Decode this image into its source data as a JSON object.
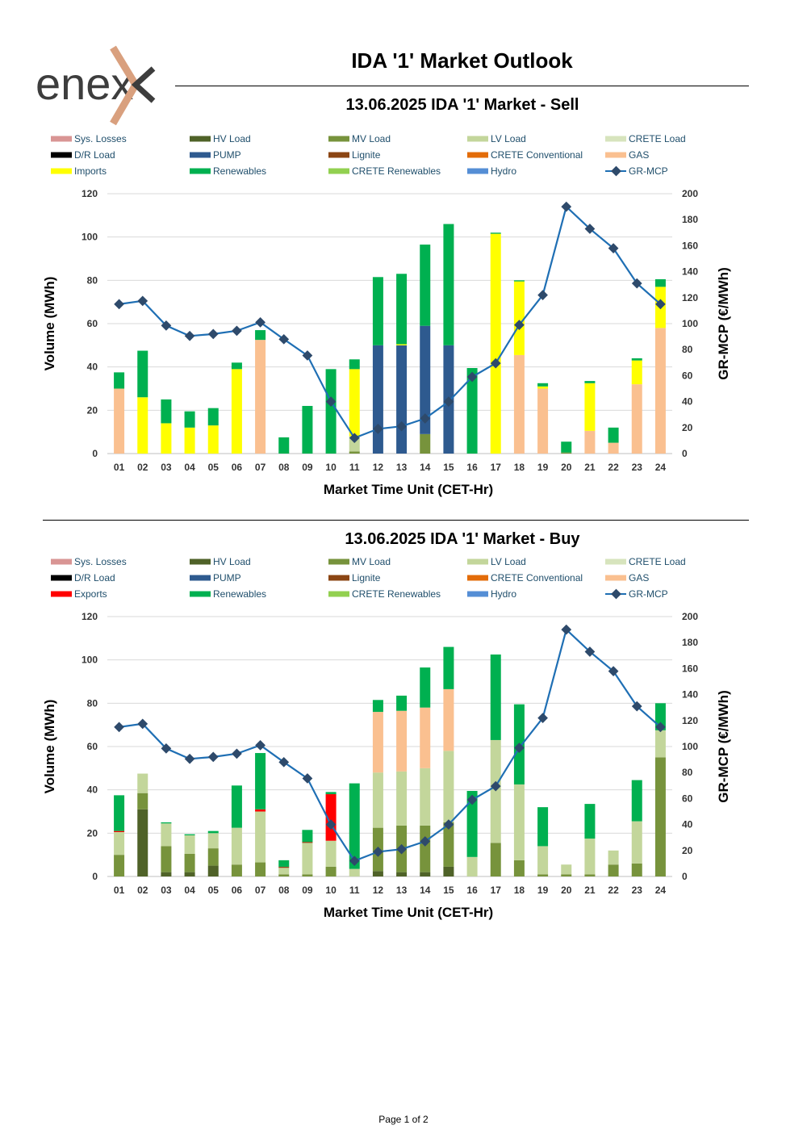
{
  "header": {
    "logo_text": "enex",
    "title": "IDA '1' Market Outlook"
  },
  "footer": {
    "page_label": "Page 1 of 2"
  },
  "colors": {
    "sys_losses": "#d99594",
    "hv_load": "#4f6228",
    "mv_load": "#77933c",
    "lv_load": "#c3d69b",
    "crete_load": "#d7e4bd",
    "dr_load": "#000000",
    "pump": "#2e5a8f",
    "lignite": "#8b4513",
    "crete_conventional": "#e36c09",
    "gas": "#fac090",
    "imports": "#ffff00",
    "exports": "#ff0000",
    "renewables": "#00b050",
    "crete_renewables": "#92d050",
    "hydro": "#558ed5",
    "mcp": "#1f6fb4",
    "mcp_marker": "#2e4a6b"
  },
  "chart_data": [
    {
      "id": "sell",
      "type": "bar",
      "title": "13.06.2025  IDA '1' Market - Sell",
      "xlabel": "Market Time Unit (CET-Hr)",
      "ylabel": "Volume (MWh)",
      "y2label": "GR-MCP (€/MWh)",
      "ylim": [
        0,
        120
      ],
      "yticks": [
        0,
        20,
        40,
        60,
        80,
        100,
        120
      ],
      "y2lim": [
        0,
        200
      ],
      "y2ticks": [
        0,
        20,
        40,
        60,
        80,
        100,
        120,
        140,
        160,
        180,
        200
      ],
      "legend": [
        {
          "label": "Sys. Losses",
          "key": "sys_losses"
        },
        {
          "label": "HV Load",
          "key": "hv_load"
        },
        {
          "label": "MV Load",
          "key": "mv_load"
        },
        {
          "label": "LV Load",
          "key": "lv_load"
        },
        {
          "label": "CRETE Load",
          "key": "crete_load"
        },
        {
          "label": "D/R Load",
          "key": "dr_load"
        },
        {
          "label": "PUMP",
          "key": "pump"
        },
        {
          "label": "Lignite",
          "key": "lignite"
        },
        {
          "label": "CRETE Conventional",
          "key": "crete_conventional"
        },
        {
          "label": "GAS",
          "key": "gas"
        },
        {
          "label": "Imports",
          "key": "imports"
        },
        {
          "label": "Renewables",
          "key": "renewables"
        },
        {
          "label": "CRETE Renewables",
          "key": "crete_renewables"
        },
        {
          "label": "Hydro",
          "key": "hydro"
        },
        {
          "label": "GR-MCP",
          "key": "mcp",
          "line": true
        }
      ],
      "categories": [
        "01",
        "02",
        "03",
        "04",
        "05",
        "06",
        "07",
        "08",
        "09",
        "10",
        "11",
        "12",
        "13",
        "14",
        "15",
        "16",
        "17",
        "18",
        "19",
        "20",
        "21",
        "22",
        "23",
        "24"
      ],
      "series": [
        {
          "name": "MV Load",
          "key": "mv_load",
          "values": [
            0,
            0,
            0,
            0,
            0,
            0,
            0,
            0,
            0,
            0,
            1,
            0,
            0,
            9,
            0,
            0,
            0,
            0,
            0,
            0.5,
            0,
            0,
            0,
            0
          ]
        },
        {
          "name": "LV Load",
          "key": "lv_load",
          "values": [
            0,
            0,
            0,
            0,
            0,
            0,
            0,
            0,
            0,
            0,
            7,
            0,
            0,
            0,
            0,
            0,
            0,
            0,
            0,
            0,
            0,
            0,
            0,
            0
          ]
        },
        {
          "name": "PUMP",
          "key": "pump",
          "values": [
            0,
            0,
            0,
            0,
            0,
            0,
            0,
            0,
            0,
            0,
            0,
            50,
            50,
            50,
            50,
            0,
            0,
            0,
            0,
            0,
            0,
            0,
            0,
            0
          ]
        },
        {
          "name": "GAS",
          "key": "gas",
          "values": [
            30,
            0,
            0,
            0,
            0,
            0,
            52.5,
            0,
            0,
            0,
            0,
            0,
            0,
            0,
            0,
            0,
            0,
            45.5,
            30,
            0,
            10.5,
            5,
            32,
            58
          ]
        },
        {
          "name": "Imports",
          "key": "imports",
          "values": [
            0,
            26,
            14,
            12,
            13,
            39,
            0,
            0,
            0,
            0,
            31,
            0,
            0.5,
            0,
            0,
            0,
            101.5,
            34,
            1,
            0,
            22,
            0,
            11,
            19
          ]
        },
        {
          "name": "Renewables",
          "key": "renewables",
          "values": [
            7.5,
            21.5,
            11,
            7.5,
            8,
            3,
            4.5,
            7.5,
            22,
            39,
            4.5,
            31.5,
            32.5,
            37.5,
            56,
            39.5,
            0.5,
            0.5,
            1.5,
            5,
            1,
            7,
            1,
            3.5
          ]
        }
      ],
      "mcp": {
        "name": "GR-MCP",
        "values": [
          115,
          117.5,
          98.5,
          90.5,
          92,
          94.5,
          101,
          88,
          75.5,
          40,
          12,
          19,
          21,
          27,
          40,
          59,
          69.5,
          99,
          122,
          190,
          173,
          158,
          131,
          115
        ]
      }
    },
    {
      "id": "buy",
      "type": "bar",
      "title": "13.06.2025  IDA '1' Market - Buy",
      "xlabel": "Market Time Unit (CET-Hr)",
      "ylabel": "Volume (MWh)",
      "y2label": "GR-MCP (€/MWh)",
      "ylim": [
        0,
        120
      ],
      "yticks": [
        0,
        20,
        40,
        60,
        80,
        100,
        120
      ],
      "y2lim": [
        0,
        200
      ],
      "y2ticks": [
        0,
        20,
        40,
        60,
        80,
        100,
        120,
        140,
        160,
        180,
        200
      ],
      "legend": [
        {
          "label": "Sys. Losses",
          "key": "sys_losses"
        },
        {
          "label": "HV Load",
          "key": "hv_load"
        },
        {
          "label": "MV Load",
          "key": "mv_load"
        },
        {
          "label": "LV Load",
          "key": "lv_load"
        },
        {
          "label": "CRETE Load",
          "key": "crete_load"
        },
        {
          "label": "D/R Load",
          "key": "dr_load"
        },
        {
          "label": "PUMP",
          "key": "pump"
        },
        {
          "label": "Lignite",
          "key": "lignite"
        },
        {
          "label": "CRETE Conventional",
          "key": "crete_conventional"
        },
        {
          "label": "GAS",
          "key": "gas"
        },
        {
          "label": "Exports",
          "key": "exports"
        },
        {
          "label": "Renewables",
          "key": "renewables"
        },
        {
          "label": "CRETE Renewables",
          "key": "crete_renewables"
        },
        {
          "label": "Hydro",
          "key": "hydro"
        },
        {
          "label": "GR-MCP",
          "key": "mcp",
          "line": true
        }
      ],
      "categories": [
        "01",
        "02",
        "03",
        "04",
        "05",
        "06",
        "07",
        "08",
        "09",
        "10",
        "11",
        "12",
        "13",
        "14",
        "15",
        "16",
        "17",
        "18",
        "19",
        "20",
        "21",
        "22",
        "23",
        "24"
      ],
      "series": [
        {
          "name": "HV Load",
          "key": "hv_load",
          "values": [
            0,
            31,
            2,
            2,
            5,
            0,
            0,
            0,
            0,
            0,
            0,
            2.5,
            2,
            2,
            4.5,
            0,
            0,
            0,
            0,
            0,
            0,
            0,
            0,
            0
          ]
        },
        {
          "name": "MV Load",
          "key": "mv_load",
          "values": [
            10,
            7.5,
            12,
            8.5,
            8,
            5.5,
            6.5,
            1,
            1,
            4.5,
            0,
            20,
            21.5,
            21.5,
            20.5,
            0,
            15.5,
            7.5,
            1,
            1,
            1,
            5.5,
            6,
            55
          ]
        },
        {
          "name": "LV Load",
          "key": "lv_load",
          "values": [
            10.5,
            9,
            10.5,
            8.5,
            7,
            17,
            23.5,
            3,
            14.5,
            12,
            3.5,
            25.5,
            25,
            26.5,
            33,
            9,
            47.5,
            35,
            13,
            4.5,
            16.5,
            6.5,
            19.5,
            12.5
          ]
        },
        {
          "name": "CRETE Load",
          "key": "crete_load",
          "values": [
            0,
            0,
            0,
            0,
            0,
            0,
            0,
            0,
            0,
            0,
            0,
            0,
            0,
            0,
            0,
            0,
            0,
            0,
            0,
            0,
            0,
            0,
            0,
            0
          ]
        },
        {
          "name": "Lignite",
          "key": "lignite",
          "values": [
            0,
            0,
            0,
            0,
            0,
            0,
            0,
            0.5,
            0.5,
            0,
            0,
            0,
            0,
            0,
            0,
            0,
            0,
            0,
            0,
            0,
            0,
            0,
            0,
            0
          ]
        },
        {
          "name": "GAS",
          "key": "gas",
          "values": [
            0,
            0,
            0,
            0,
            0,
            0,
            0,
            0,
            0,
            0,
            0,
            28,
            28,
            28,
            28.5,
            0,
            0,
            0,
            0,
            0,
            0,
            0,
            0,
            0
          ]
        },
        {
          "name": "Exports",
          "key": "exports",
          "values": [
            0.5,
            0,
            0,
            0,
            0,
            0,
            1,
            0,
            0,
            21.5,
            0,
            0,
            0,
            0,
            0,
            0,
            0,
            0,
            0,
            0,
            0,
            0,
            0,
            0
          ]
        },
        {
          "name": "Renewables",
          "key": "renewables",
          "values": [
            16.5,
            0,
            0.5,
            0.5,
            1,
            19.5,
            26,
            3,
            5.5,
            1,
            39.5,
            5.5,
            7,
            18.5,
            19.5,
            30.5,
            39.5,
            37,
            18,
            0,
            16,
            0,
            19,
            12.5
          ]
        }
      ],
      "mcp": {
        "name": "GR-MCP",
        "values": [
          115,
          117.5,
          98.5,
          90.5,
          92,
          94.5,
          101,
          88,
          75.5,
          40,
          12,
          19,
          21,
          27,
          40,
          59,
          69.5,
          99,
          122,
          190,
          173,
          158,
          131,
          115
        ]
      }
    }
  ]
}
